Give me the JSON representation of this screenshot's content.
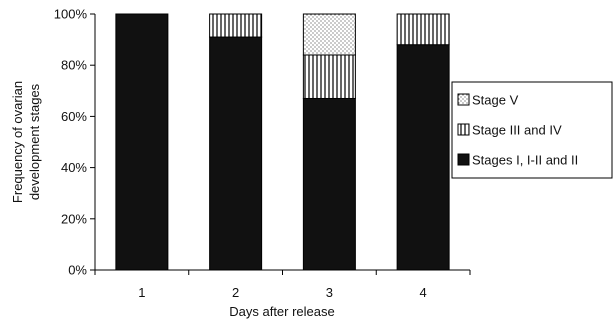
{
  "chart_data": {
    "type": "bar",
    "stacked": true,
    "title": "",
    "xlabel": "Days after release",
    "ylabel_lines": [
      "Frequency of ovarian",
      "development stages"
    ],
    "categories": [
      "1",
      "2",
      "3",
      "4"
    ],
    "ylim": [
      0,
      100
    ],
    "yticks": [
      0,
      20,
      40,
      60,
      80,
      100
    ],
    "ytick_suffix": "%",
    "grid": false,
    "legend_position": "right",
    "series": [
      {
        "name": "Stages I, I-II and II",
        "values": [
          100,
          91,
          67,
          88
        ],
        "fill": "solid",
        "color": "#111111"
      },
      {
        "name": "Stage III and IV",
        "values": [
          0,
          9,
          17,
          12
        ],
        "fill": "vertical-lines",
        "color": "#000000"
      },
      {
        "name": "Stage V",
        "values": [
          0,
          0,
          16,
          0
        ],
        "fill": "dots",
        "color": "#000000"
      }
    ]
  }
}
